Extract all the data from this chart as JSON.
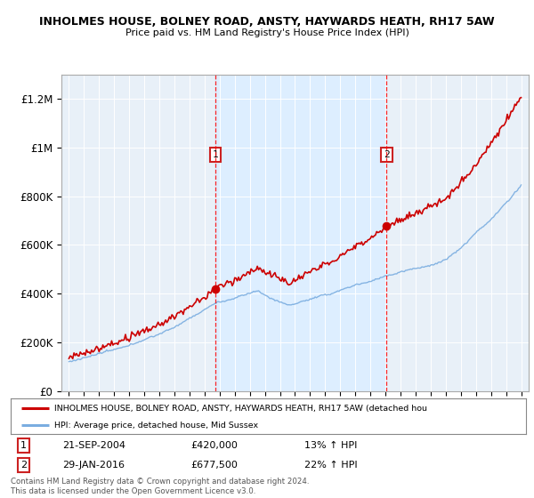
{
  "title": "INHOLMES HOUSE, BOLNEY ROAD, ANSTY, HAYWARDS HEATH, RH17 5AW",
  "subtitle": "Price paid vs. HM Land Registry's House Price Index (HPI)",
  "ylim": [
    0,
    1300000
  ],
  "yticks": [
    0,
    200000,
    400000,
    600000,
    800000,
    1000000,
    1200000
  ],
  "ytick_labels": [
    "£0",
    "£200K",
    "£400K",
    "£600K",
    "£800K",
    "£1M",
    "£1.2M"
  ],
  "sale1_year": 2004.72,
  "sale1_price": 420000,
  "sale1_date_str": "21-SEP-2004",
  "sale1_pct": "13% ↑ HPI",
  "sale2_year": 2016.08,
  "sale2_price": 677500,
  "sale2_date_str": "29-JAN-2016",
  "sale2_pct": "22% ↑ HPI",
  "hpi_line_color": "#7aade0",
  "price_line_color": "#cc0000",
  "shade_color": "#ddeeff",
  "plot_bg_color": "#e8f0f8",
  "legend_label_red": "INHOLMES HOUSE, BOLNEY ROAD, ANSTY, HAYWARDS HEATH, RH17 5AW (detached hou",
  "legend_label_blue": "HPI: Average price, detached house, Mid Sussex",
  "footer1": "Contains HM Land Registry data © Crown copyright and database right 2024.",
  "footer2": "This data is licensed under the Open Government Licence v3.0."
}
